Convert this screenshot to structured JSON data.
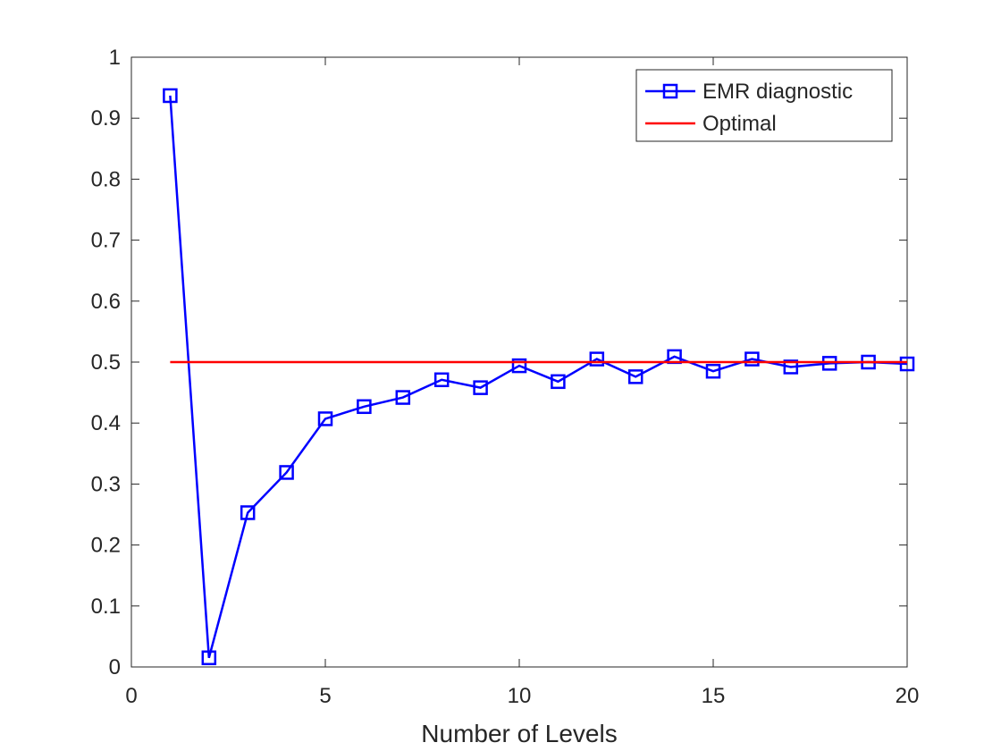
{
  "chart_data": {
    "type": "line",
    "title": "",
    "xlabel": "Number of Levels",
    "ylabel": "",
    "xlim": [
      0,
      20
    ],
    "ylim": [
      0,
      1
    ],
    "xticks": [
      0,
      5,
      10,
      15,
      20
    ],
    "yticks": [
      0,
      0.1,
      0.2,
      0.3,
      0.4,
      0.5,
      0.6,
      0.7,
      0.8,
      0.9,
      1
    ],
    "xtick_labels": [
      "0",
      "5",
      "10",
      "15",
      "20"
    ],
    "ytick_labels": [
      "0",
      "0.1",
      "0.2",
      "0.3",
      "0.4",
      "0.5",
      "0.6",
      "0.7",
      "0.8",
      "0.9",
      "1"
    ],
    "grid": false,
    "legend_position": "top-right",
    "series": [
      {
        "name": "EMR diagnostic",
        "color": "#0000ff",
        "marker": "square",
        "x": [
          1,
          2,
          3,
          4,
          5,
          6,
          7,
          8,
          9,
          10,
          11,
          12,
          13,
          14,
          15,
          16,
          17,
          18,
          19,
          20
        ],
        "y": [
          0.937,
          0.015,
          0.253,
          0.319,
          0.407,
          0.427,
          0.442,
          0.471,
          0.458,
          0.494,
          0.468,
          0.505,
          0.476,
          0.509,
          0.485,
          0.505,
          0.492,
          0.498,
          0.5,
          0.497
        ]
      },
      {
        "name": "Optimal",
        "color": "#ff0000",
        "marker": "none",
        "x": [
          1,
          20
        ],
        "y": [
          0.5,
          0.5
        ]
      }
    ]
  }
}
